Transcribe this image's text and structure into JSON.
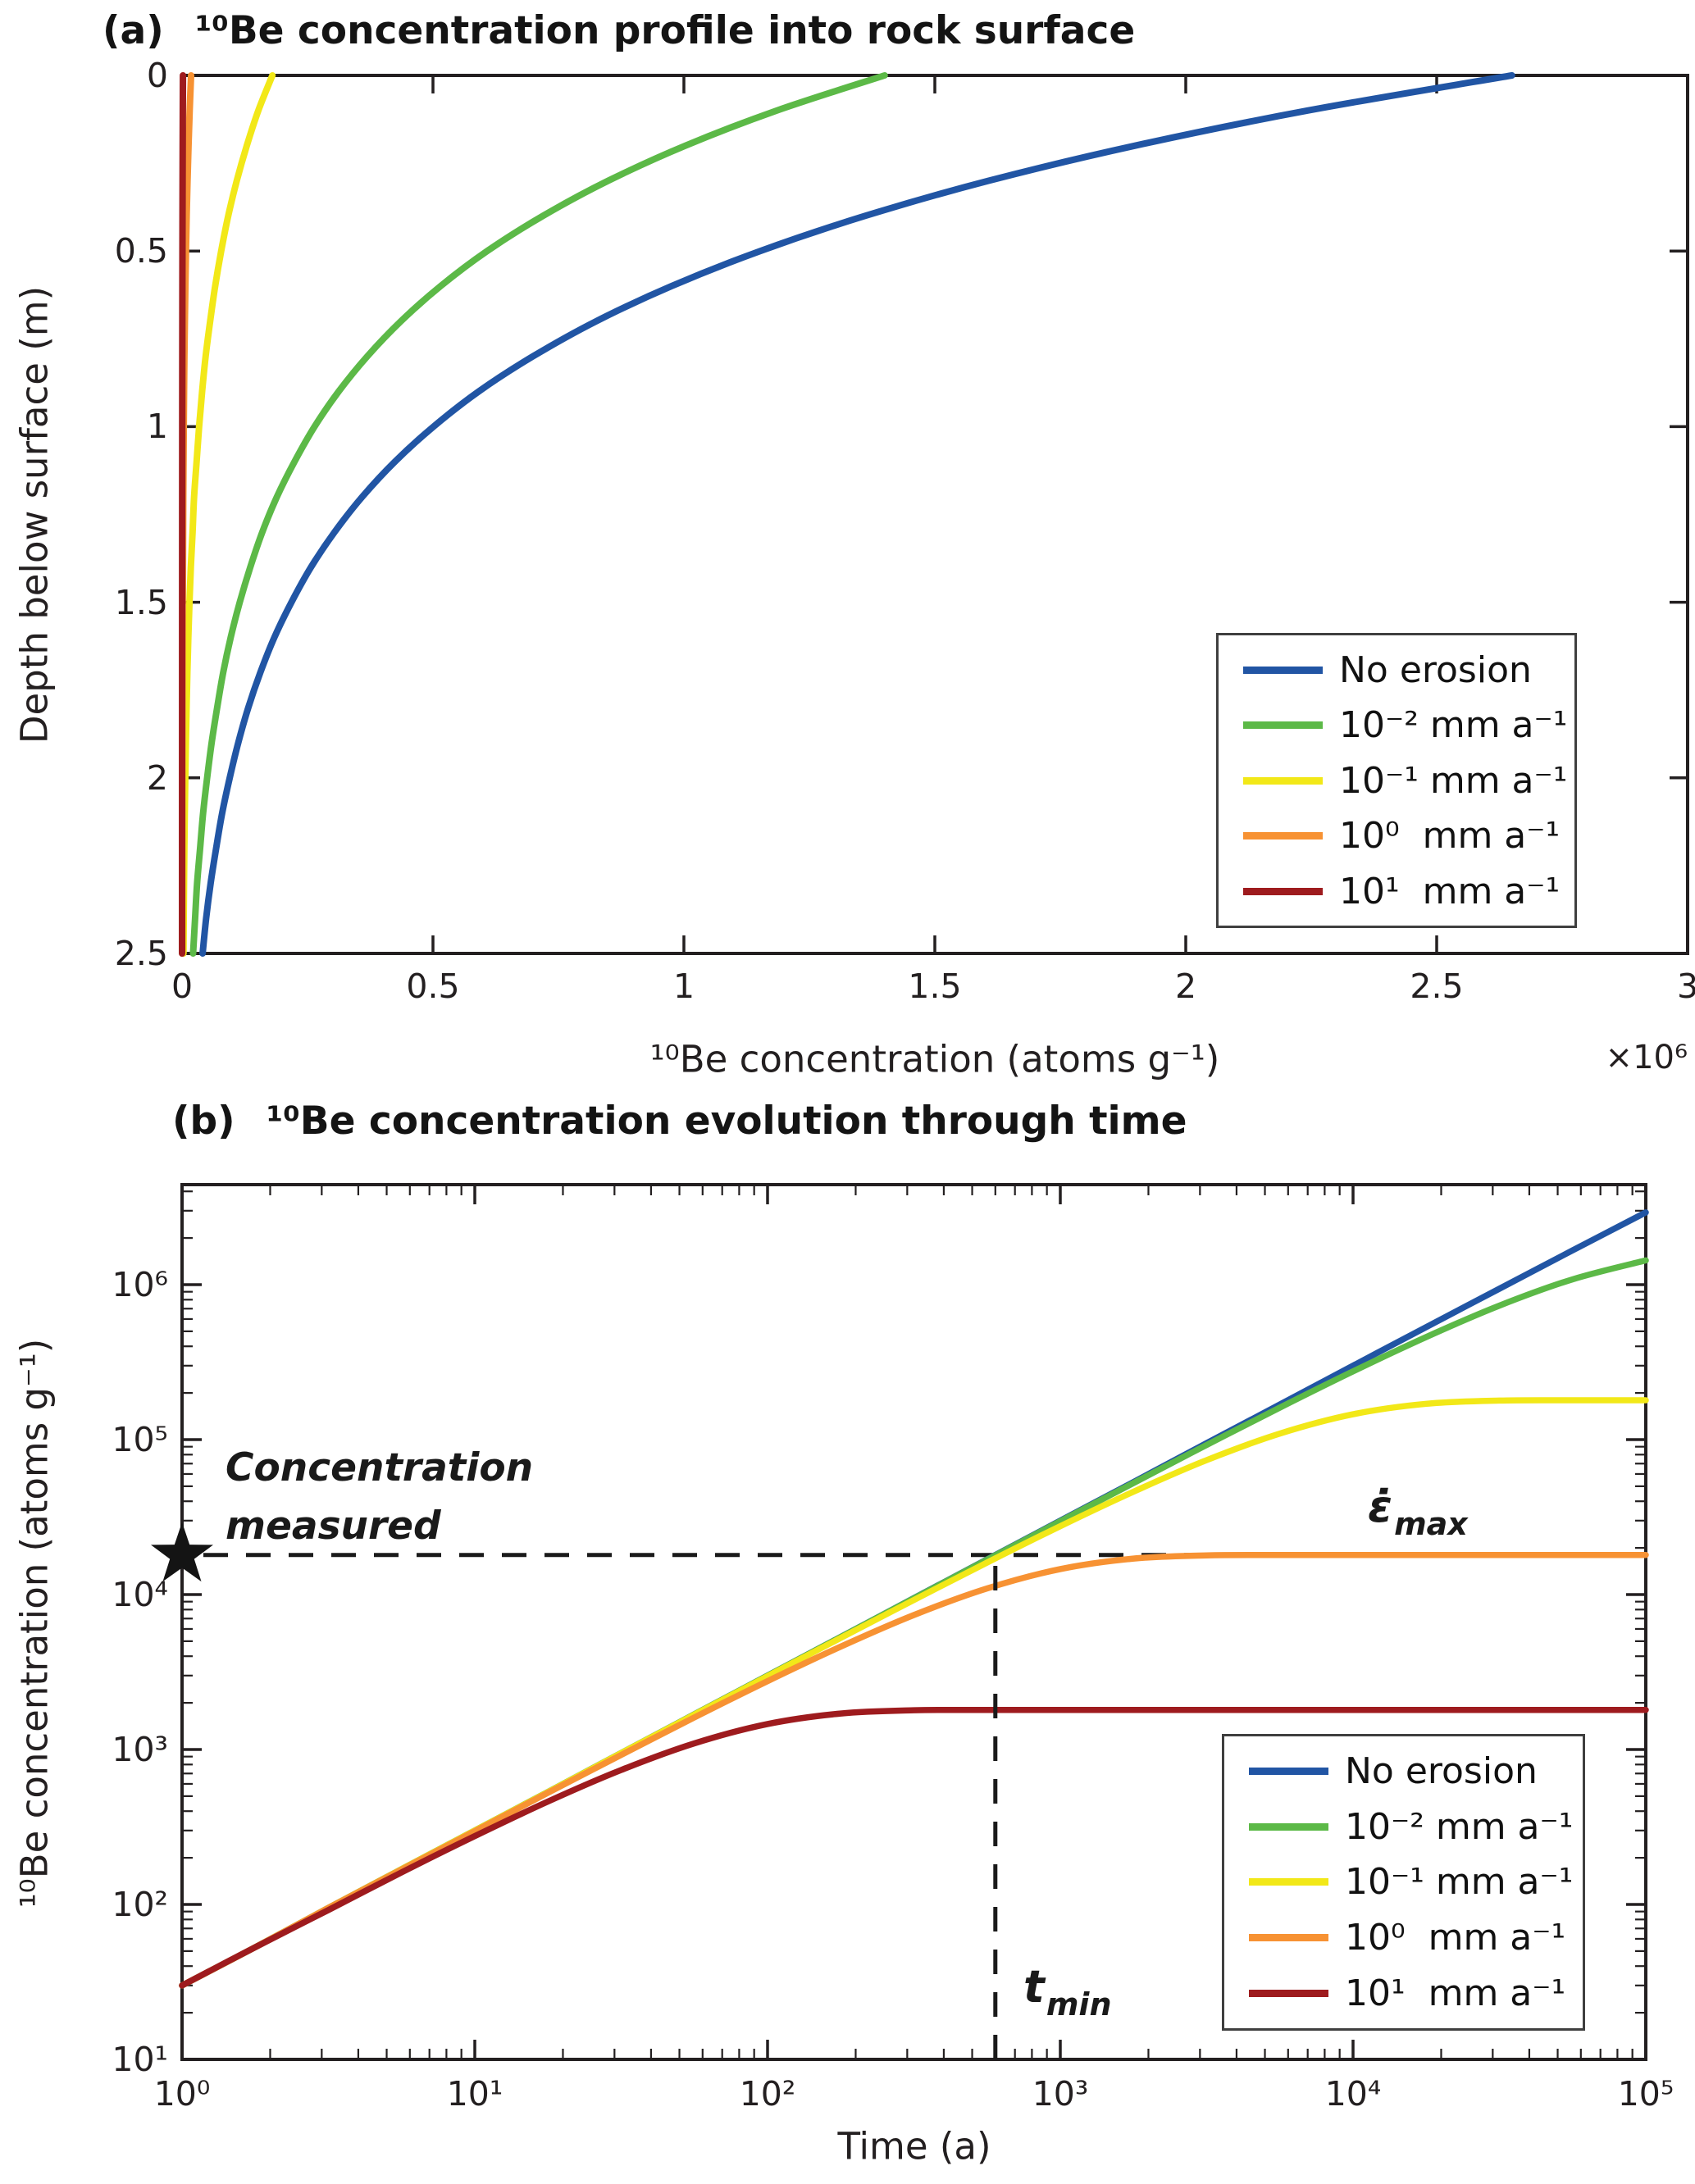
{
  "figure": {
    "background": "#ffffff",
    "axis_color": "#231f20",
    "annotation_color": "#1a1a1a",
    "legend_border_color": "#3f3f3f"
  },
  "chart_data": [
    {
      "id": "a",
      "type": "line",
      "title_prefix": "(a)",
      "title": "¹⁰Be concentration profile into rock surface",
      "xlabel": "¹⁰Be concentration (atoms g⁻¹)",
      "x_multiplier": "×10⁶",
      "ylabel": "Depth below surface (m)",
      "xlim": [
        0,
        3000000
      ],
      "ylim": [
        0,
        2.5
      ],
      "y_direction": "down",
      "grid": false,
      "xticks": {
        "values": [
          0,
          500000,
          1000000,
          1500000,
          2000000,
          2500000,
          3000000
        ],
        "labels": [
          "0",
          "0.5",
          "1",
          "1.5",
          "2",
          "2.5",
          "3"
        ]
      },
      "yticks": {
        "values": [
          0,
          0.5,
          1,
          1.5,
          2,
          2.5
        ],
        "labels": [
          "0",
          "0.5",
          "1",
          "1.5",
          "2",
          "2.5"
        ]
      },
      "depth_m": [
        0,
        0.1,
        0.2,
        0.3,
        0.4,
        0.5,
        0.6,
        0.7,
        0.8,
        0.9,
        1.0,
        1.1,
        1.2,
        1.3,
        1.4,
        1.5,
        1.6,
        1.7,
        1.8,
        1.9,
        2.0,
        2.1,
        2.2,
        2.3,
        2.4,
        2.5
      ],
      "series": [
        {
          "name": "No erosion",
          "erosion_rate_mm_per_a": 0,
          "color": "#2155a4",
          "surface_concentration_atoms_g": 2650000,
          "values": [
            2650000,
            2243000,
            1899000,
            1607000,
            1361000,
            1152000,
            975000,
            825000,
            699000,
            591000,
            501000,
            424000,
            359000,
            304000,
            257000,
            218000,
            184000,
            156000,
            132000,
            112000,
            95000,
            80000,
            68000,
            57000,
            48000,
            41000
          ]
        },
        {
          "name": "10⁻² mm a⁻¹",
          "erosion_rate_mm_per_a": 0.01,
          "color": "#5cb947",
          "surface_concentration_atoms_g": 1400000,
          "values": [
            1400000,
            1185000,
            1003000,
            849000,
            719000,
            608000,
            515000,
            436000,
            369000,
            312000,
            264000,
            224000,
            189000,
            160000,
            136000,
            115000,
            97000,
            82000,
            70000,
            59000,
            50000,
            42000,
            36000,
            30000,
            26000,
            22000
          ]
        },
        {
          "name": "10⁻¹ mm a⁻¹",
          "erosion_rate_mm_per_a": 0.1,
          "color": "#f2e818",
          "surface_concentration_atoms_g": 180000,
          "values": [
            180000,
            152000,
            129000,
            109000,
            92000,
            78000,
            66000,
            56000,
            47000,
            40000,
            34000,
            29000,
            24000,
            21000,
            17500,
            14800,
            12500,
            10600,
            9000,
            7600,
            6400,
            5400,
            4600,
            3900,
            3300,
            2800
          ]
        },
        {
          "name": "10⁰  mm a⁻¹",
          "erosion_rate_mm_per_a": 1,
          "color": "#f79233",
          "surface_concentration_atoms_g": 18000,
          "values": [
            18000,
            15200,
            12900,
            10900,
            9200,
            7800,
            6600,
            5600,
            4700,
            4000,
            3400,
            2900,
            2400,
            2100,
            1750,
            1480,
            1250,
            1060,
            900,
            760,
            640,
            540,
            460,
            390,
            330,
            280
          ]
        },
        {
          "name": "10¹  mm a⁻¹",
          "erosion_rate_mm_per_a": 10,
          "color": "#9e1b1e",
          "surface_concentration_atoms_g": 1800,
          "values": [
            1800,
            1520,
            1290,
            1090,
            920,
            780,
            660,
            560,
            470,
            400,
            340,
            290,
            240,
            210,
            175,
            148,
            125,
            106,
            90,
            76,
            64,
            54,
            46,
            39,
            33,
            28
          ]
        }
      ],
      "legend": {
        "position": "lower right",
        "items": [
          "No erosion",
          "10⁻² mm a⁻¹",
          "10⁻¹ mm a⁻¹",
          "10⁰  mm a⁻¹",
          "10¹  mm a⁻¹"
        ]
      }
    },
    {
      "id": "b",
      "type": "line",
      "title_prefix": "(b)",
      "title": "¹⁰Be concentration evolution through time",
      "xlabel": "Time (a)",
      "ylabel": "¹⁰Be concentration (atoms g⁻¹)",
      "xscale": "log",
      "yscale": "log",
      "xlim": [
        1,
        100000
      ],
      "ylim": [
        10,
        4400000
      ],
      "grid": false,
      "xticks": {
        "values": [
          1,
          10,
          100,
          1000,
          10000,
          100000
        ],
        "labels": [
          "10⁰",
          "10¹",
          "10²",
          "10³",
          "10⁴",
          "10⁵"
        ]
      },
      "yticks": {
        "values": [
          10,
          100,
          1000,
          10000,
          100000,
          1000000
        ],
        "labels": [
          "10¹",
          "10²",
          "10³",
          "10⁴",
          "10⁵",
          "10⁶"
        ]
      },
      "time_a": [
        1,
        1.78,
        3.16,
        5.62,
        10,
        17.8,
        31.6,
        56.2,
        100,
        178,
        316,
        562,
        1000,
        1780,
        3160,
        5620,
        10000,
        17800,
        31600,
        56200,
        100000
      ],
      "series": [
        {
          "name": "No erosion",
          "erosion_rate_mm_per_a": 0,
          "color": "#2155a4",
          "values": [
            30,
            53,
            95,
            169,
            300,
            533,
            949,
            1687,
            3000,
            5333,
            9486,
            16868,
            29993,
            53306,
            94820,
            168447,
            299925,
            533000,
            941000,
            1664000,
            2926000
          ]
        },
        {
          "name": "10⁻² mm a⁻¹",
          "erosion_rate_mm_per_a": 0.01,
          "color": "#5cb947",
          "values": [
            30,
            53,
            95,
            169,
            300,
            533,
            948,
            1686,
            2997,
            5325,
            9460,
            16786,
            29739,
            52510,
            92330,
            160820,
            275660,
            459800,
            732000,
            1082000,
            1434000
          ]
        },
        {
          "name": "10⁻¹ mm a⁻¹",
          "erosion_rate_mm_per_a": 0.1,
          "color": "#f2e818",
          "values": [
            30,
            53,
            95,
            169,
            300,
            532,
            947,
            1679,
            2975,
            5255,
            9221,
            16080,
            27626,
            46144,
            73677,
            109360,
            145760,
            170290,
            178550,
            179400,
            179460
          ]
        },
        {
          "name": "10⁰  mm a⁻¹",
          "erosion_rate_mm_per_a": 1,
          "color": "#f79233",
          "values": [
            30,
            53,
            95,
            168,
            297,
            526,
            922,
            1610,
            2763,
            4616,
            7373,
            10948,
            14600,
            17070,
            17900,
            17990,
            18000,
            18000,
            18000,
            18000,
            18000
          ]
        },
        {
          "name": "10¹  mm a⁻¹",
          "erosion_rate_mm_per_a": 10,
          "color": "#9e1b1e",
          "values": [
            30,
            53,
            92,
            161,
            276,
            462,
            737,
            1095,
            1460,
            1707,
            1791,
            1800,
            1800,
            1800,
            1800,
            1800,
            1800,
            1800,
            1800,
            1800,
            1800
          ]
        }
      ],
      "annotations": {
        "measured_label": "Concentration\nmeasured",
        "measured_concentration_atoms_g": 18000,
        "star_marker": "★",
        "t_min_a": 600,
        "epsilon_max_symbol": "ε̇",
        "epsilon_max_sub": "max",
        "t_min_symbol": "t",
        "t_min_sub": "min",
        "dash_color": "#1a1a1a"
      },
      "legend": {
        "position": "lower right",
        "items": [
          "No erosion",
          "10⁻² mm a⁻¹",
          "10⁻¹ mm a⁻¹",
          "10⁰  mm a⁻¹",
          "10¹  mm a⁻¹"
        ]
      }
    }
  ]
}
